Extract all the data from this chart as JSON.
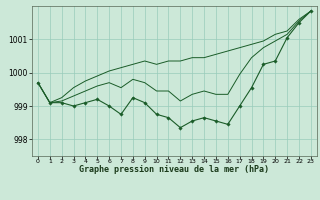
{
  "xlabel": "Graphe pression niveau de la mer (hPa)",
  "background_color": "#cce8d8",
  "grid_color": "#99ccbb",
  "line_color": "#1a5c28",
  "x_values": [
    0,
    1,
    2,
    3,
    4,
    5,
    6,
    7,
    8,
    9,
    10,
    11,
    12,
    13,
    14,
    15,
    16,
    17,
    18,
    19,
    20,
    21,
    22,
    23
  ],
  "line_main": [
    999.7,
    999.1,
    999.1,
    999.0,
    999.1,
    999.2,
    999.0,
    998.75,
    999.25,
    999.1,
    998.75,
    998.65,
    998.35,
    998.55,
    998.65,
    998.55,
    998.45,
    999.0,
    999.55,
    1000.25,
    1000.35,
    1001.05,
    1001.5,
    1001.85
  ],
  "line_upper": [
    999.7,
    999.1,
    999.25,
    999.55,
    999.75,
    999.9,
    1000.05,
    1000.15,
    1000.25,
    1000.35,
    1000.25,
    1000.35,
    1000.35,
    1000.45,
    1000.45,
    1000.55,
    1000.65,
    1000.75,
    1000.85,
    1000.95,
    1001.15,
    1001.25,
    1001.6,
    1001.85
  ],
  "line_mid": [
    999.7,
    999.1,
    999.15,
    999.3,
    999.45,
    999.6,
    999.7,
    999.55,
    999.8,
    999.7,
    999.45,
    999.45,
    999.15,
    999.35,
    999.45,
    999.35,
    999.35,
    999.95,
    1000.45,
    1000.75,
    1000.95,
    1001.15,
    1001.55,
    1001.85
  ],
  "ylim": [
    997.5,
    1002.0
  ],
  "ytick_vals": [
    998,
    999,
    1000,
    1001
  ],
  "figsize": [
    3.2,
    2.0
  ],
  "dpi": 100
}
